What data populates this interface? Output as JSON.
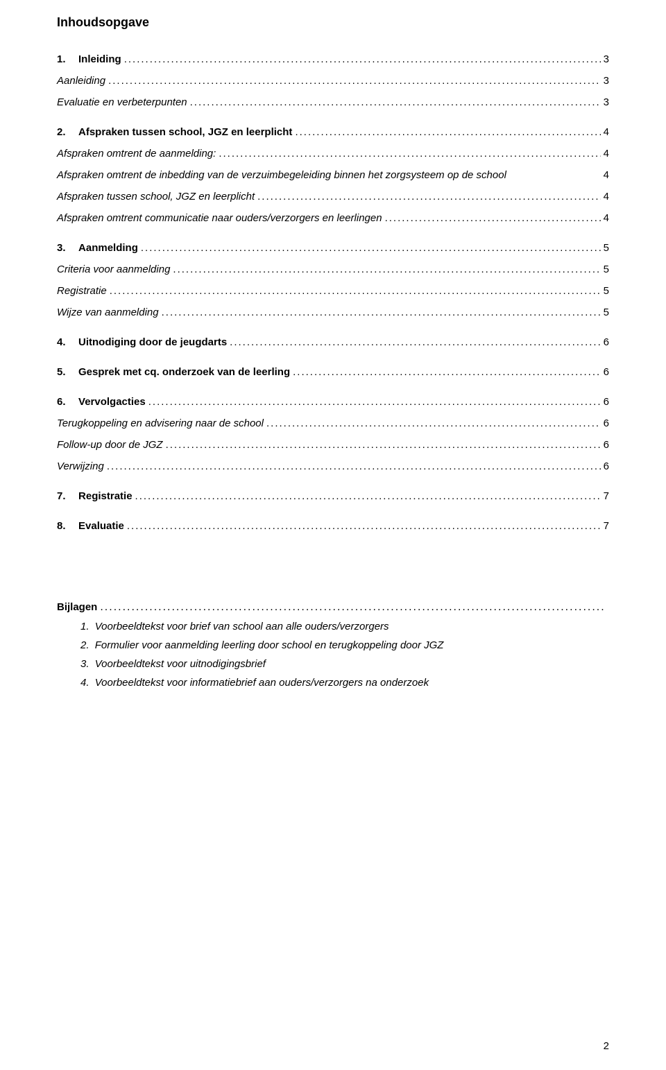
{
  "title": "Inhoudsopgave",
  "leader_fill": "......................................................................................................................................................................................................................................................",
  "toc": [
    {
      "num": "1.",
      "label": "Inleiding",
      "page": "3",
      "bold": true,
      "italic": false,
      "indent": 0,
      "gap_before": 0
    },
    {
      "num": "",
      "label": "Aanleiding",
      "page": "3",
      "bold": false,
      "italic": true,
      "indent": 0,
      "gap_before": 0
    },
    {
      "num": "",
      "label": "Evaluatie en verbeterpunten",
      "page": "3",
      "bold": false,
      "italic": true,
      "indent": 0,
      "gap_before": 0
    },
    {
      "num": "2.",
      "label": "Afspraken tussen school, JGZ en leerplicht",
      "page": "4",
      "bold": true,
      "italic": false,
      "indent": 0,
      "gap_before": 12
    },
    {
      "num": "",
      "label": "Afspraken omtrent de aanmelding:",
      "page": "4",
      "bold": false,
      "italic": true,
      "indent": 0,
      "gap_before": 0
    },
    {
      "num": "",
      "label": "Afspraken omtrent de inbedding van de verzuimbegeleiding binnen het zorgsysteem op de school",
      "page": "4",
      "bold": false,
      "italic": true,
      "indent": 0,
      "gap_before": 0,
      "wrap": true
    },
    {
      "num": "",
      "label": "Afspraken tussen school, JGZ en leerplicht",
      "page": "4",
      "bold": false,
      "italic": true,
      "indent": 0,
      "gap_before": 0
    },
    {
      "num": "",
      "label": "Afspraken omtrent communicatie naar ouders/verzorgers en leerlingen",
      "page": "4",
      "bold": false,
      "italic": true,
      "indent": 0,
      "gap_before": 0
    },
    {
      "num": "3.",
      "label": "Aanmelding",
      "page": "5",
      "bold": true,
      "italic": false,
      "indent": 0,
      "gap_before": 12
    },
    {
      "num": "",
      "label": "Criteria voor aanmelding",
      "page": "5",
      "bold": false,
      "italic": true,
      "indent": 0,
      "gap_before": 0
    },
    {
      "num": "",
      "label": "Registratie",
      "page": "5",
      "bold": false,
      "italic": true,
      "indent": 0,
      "gap_before": 0
    },
    {
      "num": "",
      "label": "Wijze van aanmelding",
      "page": "5",
      "bold": false,
      "italic": true,
      "indent": 0,
      "gap_before": 0
    },
    {
      "num": "4.",
      "label": "Uitnodiging door de jeugdarts",
      "page": "6",
      "bold": true,
      "italic": false,
      "indent": 0,
      "gap_before": 12
    },
    {
      "num": "5.",
      "label": "Gesprek met cq. onderzoek van de leerling",
      "page": "6",
      "bold": true,
      "italic": false,
      "indent": 0,
      "gap_before": 12
    },
    {
      "num": "6.",
      "label": "Vervolgacties",
      "page": "6",
      "bold": true,
      "italic": false,
      "indent": 0,
      "gap_before": 12
    },
    {
      "num": "",
      "label": "Terugkoppeling en advisering naar de school",
      "page": "6",
      "bold": false,
      "italic": true,
      "indent": 0,
      "gap_before": 0
    },
    {
      "num": "",
      "label": "Follow-up door de JGZ",
      "page": "6",
      "bold": false,
      "italic": true,
      "indent": 0,
      "gap_before": 0
    },
    {
      "num": "",
      "label": "Verwijzing",
      "page": "6",
      "bold": false,
      "italic": true,
      "indent": 0,
      "gap_before": 0
    },
    {
      "num": "7.",
      "label": "Registratie",
      "page": "7",
      "bold": true,
      "italic": false,
      "indent": 0,
      "gap_before": 12
    },
    {
      "num": "8.",
      "label": "Evaluatie",
      "page": "7",
      "bold": true,
      "italic": false,
      "indent": 0,
      "gap_before": 12
    }
  ],
  "attachments_heading_label": "Bijlagen",
  "attachments_heading_page": "",
  "attachments": [
    {
      "num": "1.",
      "label": "Voorbeeldtekst voor brief van school aan alle ouders/verzorgers"
    },
    {
      "num": "2.",
      "label": "Formulier voor aanmelding leerling door school en terugkoppeling door JGZ"
    },
    {
      "num": "3.",
      "label": "Voorbeeldtekst voor uitnodigingsbrief"
    },
    {
      "num": "4.",
      "label": "Voorbeeldtekst voor informatiebrief aan ouders/verzorgers na onderzoek"
    }
  ],
  "page_number": "2"
}
